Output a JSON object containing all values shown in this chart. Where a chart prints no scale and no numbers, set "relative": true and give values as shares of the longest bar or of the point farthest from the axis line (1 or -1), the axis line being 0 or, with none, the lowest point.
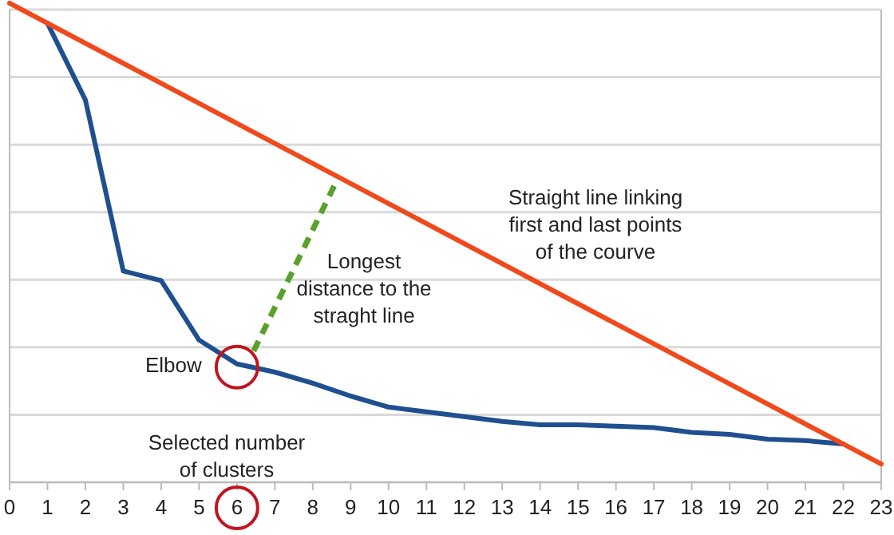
{
  "chart_data": {
    "type": "line",
    "relative": true,
    "xlim": [
      0,
      23
    ],
    "xticks": [
      0,
      1,
      2,
      3,
      4,
      5,
      6,
      7,
      8,
      9,
      10,
      11,
      12,
      13,
      14,
      15,
      16,
      17,
      18,
      19,
      20,
      21,
      22,
      23
    ],
    "grid": "y",
    "line_style": "solid",
    "marker": "none",
    "series": [
      {
        "color": "#1f4f8f",
        "x": [
          1,
          2,
          3,
          4,
          5,
          6,
          7,
          8,
          9,
          10,
          11,
          12,
          13,
          14,
          15,
          16,
          17,
          18,
          19,
          20,
          21,
          22
        ],
        "values": [
          0.958,
          0.798,
          0.441,
          0.421,
          0.297,
          0.247,
          0.23,
          0.207,
          0.18,
          0.157,
          0.147,
          0.137,
          0.127,
          0.12,
          0.12,
          0.117,
          0.114,
          0.104,
          0.1,
          0.09,
          0.087,
          0.08
        ]
      },
      {
        "color": "#f04a1c",
        "x": [
          0,
          23
        ],
        "values": [
          1,
          0.038
        ]
      },
      {
        "color": "#5aa02c",
        "x": [
          6.44,
          8.66
        ],
        "values": [
          0.274,
          0.634
        ],
        "line_style": "dashed"
      }
    ],
    "annotations": [
      {
        "text": "Elbow",
        "x": 6,
        "y": 0.247
      },
      "Longest distance to the straght line",
      "Straight line linking first and last points of the courve",
      "Selected number of clusters"
    ]
  }
}
